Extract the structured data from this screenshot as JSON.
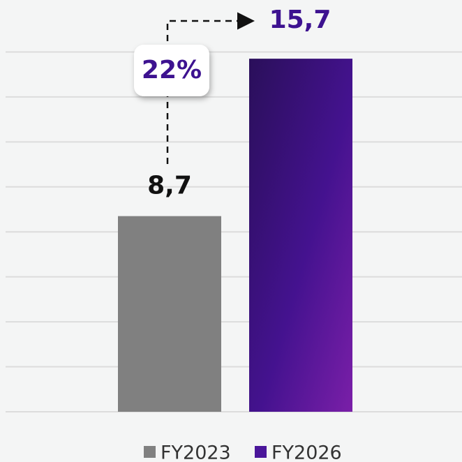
{
  "chart_data": {
    "type": "bar",
    "categories": [
      "FY2023",
      "FY2026"
    ],
    "values": [
      8.7,
      15.7
    ],
    "value_labels": [
      "8,7",
      "15,7"
    ],
    "colors": [
      "#808080",
      "#4a169a"
    ],
    "annotation": "22%",
    "ylim": [
      0,
      18
    ],
    "yticks": [
      0,
      2,
      4,
      6,
      8,
      10,
      12,
      14,
      16
    ],
    "grid": true,
    "legend": "bottom"
  }
}
